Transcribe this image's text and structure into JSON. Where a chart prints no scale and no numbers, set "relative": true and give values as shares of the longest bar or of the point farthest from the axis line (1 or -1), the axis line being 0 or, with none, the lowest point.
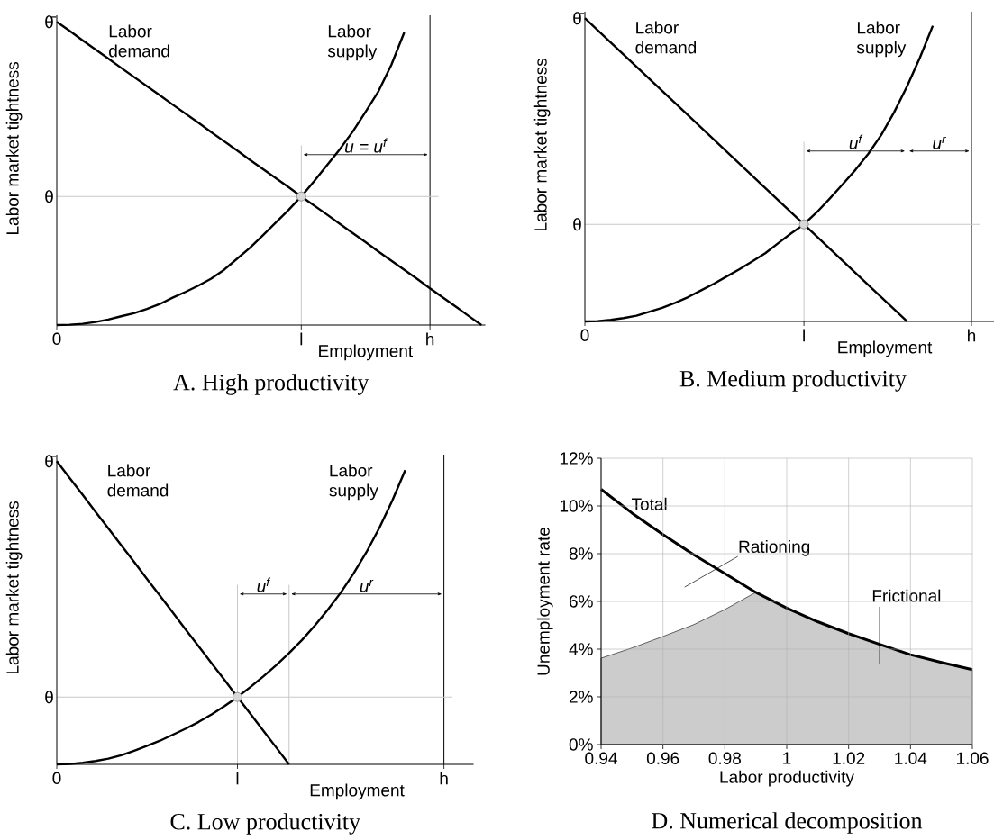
{
  "chart_data": [
    {
      "type": "line",
      "relative": true,
      "title": "A. High productivity",
      "xlabel": "Employment",
      "ylabel": "Labor market tightness",
      "categories": [
        "0",
        null,
        null,
        null,
        null,
        null,
        null,
        null,
        null,
        null,
        null,
        null,
        null,
        null,
        null,
        null,
        null,
        null,
        null,
        "l",
        null,
        null,
        null,
        null,
        null,
        null,
        null,
        null,
        null,
        "h",
        null,
        null,
        null,
        null
      ],
      "series": [
        {
          "name": "Labor demand",
          "type": "line",
          "color": "#000000",
          "values": [
            1,
            0.97,
            0.939,
            0.909,
            0.879,
            0.848,
            0.818,
            0.788,
            0.758,
            0.727,
            0.697,
            0.667,
            0.636,
            0.606,
            0.576,
            0.545,
            0.515,
            0.485,
            0.455,
            0.424,
            0.394,
            0.364,
            0.333,
            0.303,
            0.273,
            0.242,
            0.212,
            0.182,
            0.152,
            0.121,
            0.091,
            0.061,
            0.03,
            0
          ]
        },
        {
          "name": "Labor supply",
          "type": "line",
          "color": "#000000",
          "values": [
            0,
            0.001,
            0.004,
            0.01,
            0.018,
            0.029,
            0.039,
            0.053,
            0.069,
            0.09,
            0.109,
            0.13,
            0.153,
            0.182,
            0.218,
            0.254,
            0.295,
            0.337,
            0.379,
            0.424,
            0.474,
            0.527,
            0.58,
            0.638,
            0.703,
            0.771,
            0.858,
            0.965,
            null,
            null,
            null,
            null,
            null,
            null
          ]
        },
        {
          "type": "scatter",
          "color": "#d9d9d9",
          "values": [
            null,
            null,
            null,
            null,
            null,
            null,
            null,
            null,
            null,
            null,
            null,
            null,
            null,
            null,
            null,
            null,
            null,
            null,
            null,
            0.424,
            null,
            null,
            null,
            null,
            null,
            null,
            null,
            null,
            null,
            null,
            null,
            null,
            null,
            null
          ]
        }
      ],
      "ref_lines": [
        {
          "axis": "x",
          "value": "l",
          "color": "#c8c8c8"
        },
        {
          "axis": "x",
          "value": "h",
          "color": "#000000"
        },
        {
          "axis": "y",
          "value": 0.424,
          "label": "θ",
          "color": "#c8c8c8"
        }
      ],
      "annotations": [
        "θ̄",
        "u = u$^{f}$"
      ]
    },
    {
      "type": "line",
      "relative": true,
      "title": "B. Medium productivity",
      "xlabel": "Employment",
      "ylabel": "Labor market tightness",
      "categories": [
        "0",
        null,
        null,
        null,
        null,
        null,
        null,
        null,
        null,
        null,
        null,
        null,
        null,
        null,
        null,
        null,
        null,
        "l",
        null,
        null,
        null,
        null,
        null,
        null,
        null,
        null,
        null,
        null,
        null,
        null,
        "h",
        null,
        null
      ],
      "series": [
        {
          "name": "Labor demand",
          "type": "line",
          "color": "#000000",
          "values": [
            1,
            0.96,
            0.92,
            0.88,
            0.84,
            0.8,
            0.76,
            0.72,
            0.68,
            0.64,
            0.6,
            0.56,
            0.52,
            0.48,
            0.44,
            0.4,
            0.36,
            0.32,
            0.28,
            0.24,
            0.2,
            0.16,
            0.12,
            0.08,
            0.04,
            0,
            null,
            null,
            null,
            null,
            null,
            null,
            null
          ]
        },
        {
          "name": "Labor supply",
          "type": "line",
          "color": "#000000",
          "values": [
            0,
            0.001,
            0.005,
            0.011,
            0.019,
            0.032,
            0.045,
            0.061,
            0.08,
            0.102,
            0.124,
            0.148,
            0.172,
            0.198,
            0.225,
            0.258,
            0.29,
            0.32,
            0.36,
            0.405,
            0.452,
            0.5,
            0.553,
            0.615,
            0.69,
            0.775,
            0.87,
            0.975,
            null,
            null,
            null,
            null,
            null
          ]
        },
        {
          "type": "scatter",
          "color": "#d9d9d9",
          "values": [
            null,
            null,
            null,
            null,
            null,
            null,
            null,
            null,
            null,
            null,
            null,
            null,
            null,
            null,
            null,
            null,
            null,
            0.32,
            null,
            null,
            null,
            null,
            null,
            null,
            null,
            null,
            null,
            null,
            null,
            null,
            null,
            null,
            null
          ]
        }
      ],
      "ref_lines": [
        {
          "axis": "x",
          "value": "l",
          "color": "#c8c8c8"
        },
        {
          "axis": "x",
          "value": "h",
          "color": "#000000"
        },
        {
          "axis": "y",
          "value": 0.32,
          "label": "θ",
          "color": "#c8c8c8"
        }
      ],
      "annotations": [
        "θ̄",
        "u$^{f}$",
        "u$^{r}$"
      ]
    },
    {
      "type": "line",
      "relative": true,
      "title": "C. Low productivity",
      "xlabel": "Employment",
      "ylabel": "Labor market tightness",
      "categories": [
        "0",
        null,
        null,
        null,
        null,
        null,
        null,
        null,
        null,
        null,
        null,
        null,
        null,
        null,
        "l",
        null,
        null,
        null,
        null,
        null,
        null,
        null,
        null,
        null,
        null,
        null,
        null,
        null,
        null,
        null,
        "h",
        null,
        null
      ],
      "series": [
        {
          "name": "Labor demand",
          "type": "line",
          "color": "#000000",
          "values": [
            1,
            0.944,
            0.889,
            0.833,
            0.778,
            0.722,
            0.667,
            0.611,
            0.556,
            0.5,
            0.444,
            0.389,
            0.333,
            0.278,
            0.222,
            0.167,
            0.111,
            0.056,
            0,
            null,
            null,
            null,
            null,
            null,
            null,
            null,
            null,
            null,
            null,
            null,
            null,
            null,
            null
          ]
        },
        {
          "name": "Labor supply",
          "type": "line",
          "color": "#000000",
          "values": [
            0,
            0.001,
            0.005,
            0.011,
            0.019,
            0.03,
            0.045,
            0.061,
            0.078,
            0.098,
            0.118,
            0.14,
            0.165,
            0.192,
            0.222,
            0.255,
            0.29,
            0.327,
            0.367,
            0.41,
            0.458,
            0.51,
            0.566,
            0.63,
            0.7,
            0.78,
            0.87,
            0.97,
            null,
            null,
            null,
            null,
            null
          ]
        },
        {
          "type": "scatter",
          "color": "#d9d9d9",
          "values": [
            null,
            null,
            null,
            null,
            null,
            null,
            null,
            null,
            null,
            null,
            null,
            null,
            null,
            null,
            0.222,
            null,
            null,
            null,
            null,
            null,
            null,
            null,
            null,
            null,
            null,
            null,
            null,
            null,
            null,
            null,
            null,
            null,
            null
          ]
        }
      ],
      "ref_lines": [
        {
          "axis": "x",
          "value": "l",
          "color": "#c8c8c8"
        },
        {
          "axis": "x",
          "value": "h",
          "color": "#000000"
        },
        {
          "axis": "y",
          "value": 0.222,
          "label": "θ",
          "color": "#c8c8c8"
        }
      ],
      "annotations": [
        "θ̄",
        "u$^{f}$",
        "u$^{r}$"
      ]
    },
    {
      "type": "line",
      "title": "D. Numerical decomposition",
      "xlabel": "Labor productivity",
      "ylabel": "Unemployment rate",
      "xlim": [
        0.94,
        1.06
      ],
      "ylim": [
        0,
        12
      ],
      "xticks": [
        0.94,
        0.96,
        0.98,
        1,
        1.02,
        1.04,
        1.06
      ],
      "yticks": [
        {
          "value": 0,
          "label": "0%"
        },
        {
          "value": 2,
          "label": "2%"
        },
        {
          "value": 4,
          "label": "4%"
        },
        {
          "value": 6,
          "label": "6%"
        },
        {
          "value": 8,
          "label": "8%"
        },
        {
          "value": 10,
          "label": "10%"
        },
        {
          "value": 12,
          "label": "12%"
        }
      ],
      "grid": true,
      "series": [
        {
          "type": "area",
          "color": "#cccccc",
          "x": [
            0.94,
            0.95,
            0.96,
            0.97,
            0.98,
            0.99,
            1.0,
            1.01,
            1.02,
            1.03,
            1.04,
            1.05,
            1.06
          ],
          "values": [
            3.62,
            4.05,
            4.53,
            5.03,
            5.66,
            6.38,
            5.72,
            5.15,
            4.65,
            4.2,
            3.77,
            3.44,
            3.14
          ]
        },
        {
          "name": "Total",
          "type": "line",
          "color": "#000000",
          "x": [
            0.94,
            0.95,
            0.96,
            0.97,
            0.98,
            0.99,
            1.0,
            1.01,
            1.02,
            1.03,
            1.04,
            1.05,
            1.06
          ],
          "values": [
            10.7,
            9.7,
            8.8,
            7.95,
            7.17,
            6.38,
            5.72,
            5.15,
            4.65,
            4.2,
            3.77,
            3.44,
            3.14
          ]
        }
      ],
      "annotations": [
        "Rationing",
        "Frictional"
      ]
    }
  ]
}
